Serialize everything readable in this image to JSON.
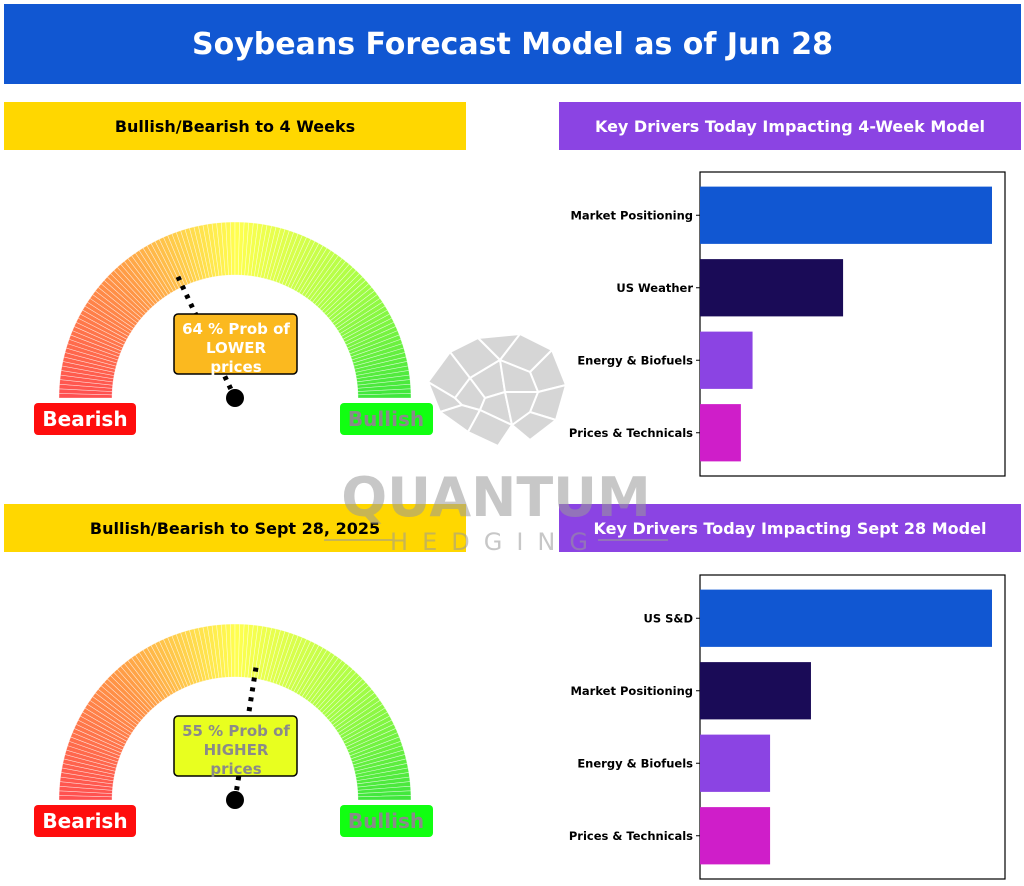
{
  "header": {
    "title": "Soybeans Forecast Model as of Jun 28"
  },
  "sections": {
    "gauge1_title": "Bullish/Bearish to 4 Weeks",
    "gauge2_title": "Bullish/Bearish to Sept 28, 2025",
    "drivers1_title": "Key Drivers Today Impacting 4-Week Model",
    "drivers2_title": "Key Drivers Today Impacting Sept 28 Model"
  },
  "watermark": {
    "brand": "QUANTUM",
    "sub": "HEDGING"
  },
  "chart_data": [
    {
      "type": "gauge",
      "title": "Bullish/Bearish to 4 Weeks",
      "probability_pct": 64,
      "direction": "LOWER",
      "label_lines": [
        "64 % Prob of",
        "LOWER",
        "prices"
      ],
      "left_label": "Bearish",
      "right_label": "Bullish",
      "box_color": "#fbb91f",
      "label_color": "#ffffff"
    },
    {
      "type": "bar",
      "orientation": "horizontal",
      "title": "Key Drivers Today Impacting 4-Week Model",
      "categories": [
        "Market Positioning",
        "US Weather",
        "Energy & Biofuels",
        "Prices & Technicals"
      ],
      "values": [
        1.0,
        0.49,
        0.18,
        0.14
      ],
      "colors": [
        "#1157d2",
        "#1a0b57",
        "#8b44e3",
        "#cf1ec9"
      ],
      "grid": false
    },
    {
      "type": "gauge",
      "title": "Bullish/Bearish to Sept 28, 2025",
      "probability_pct": 55,
      "direction": "HIGHER",
      "label_lines": [
        "55 % Prob of",
        "HIGHER",
        "prices"
      ],
      "left_label": "Bearish",
      "right_label": "Bullish",
      "box_color": "#e8ff1f",
      "label_color": "#8a8a8a"
    },
    {
      "type": "bar",
      "orientation": "horizontal",
      "title": "Key Drivers Today Impacting Sept 28 Model",
      "categories": [
        "US S&D",
        "Market Positioning",
        "Energy & Biofuels",
        "Prices & Technicals"
      ],
      "values": [
        1.0,
        0.38,
        0.24,
        0.24
      ],
      "colors": [
        "#1157d2",
        "#1a0b57",
        "#8b44e3",
        "#cf1ec9"
      ],
      "grid": false
    }
  ]
}
